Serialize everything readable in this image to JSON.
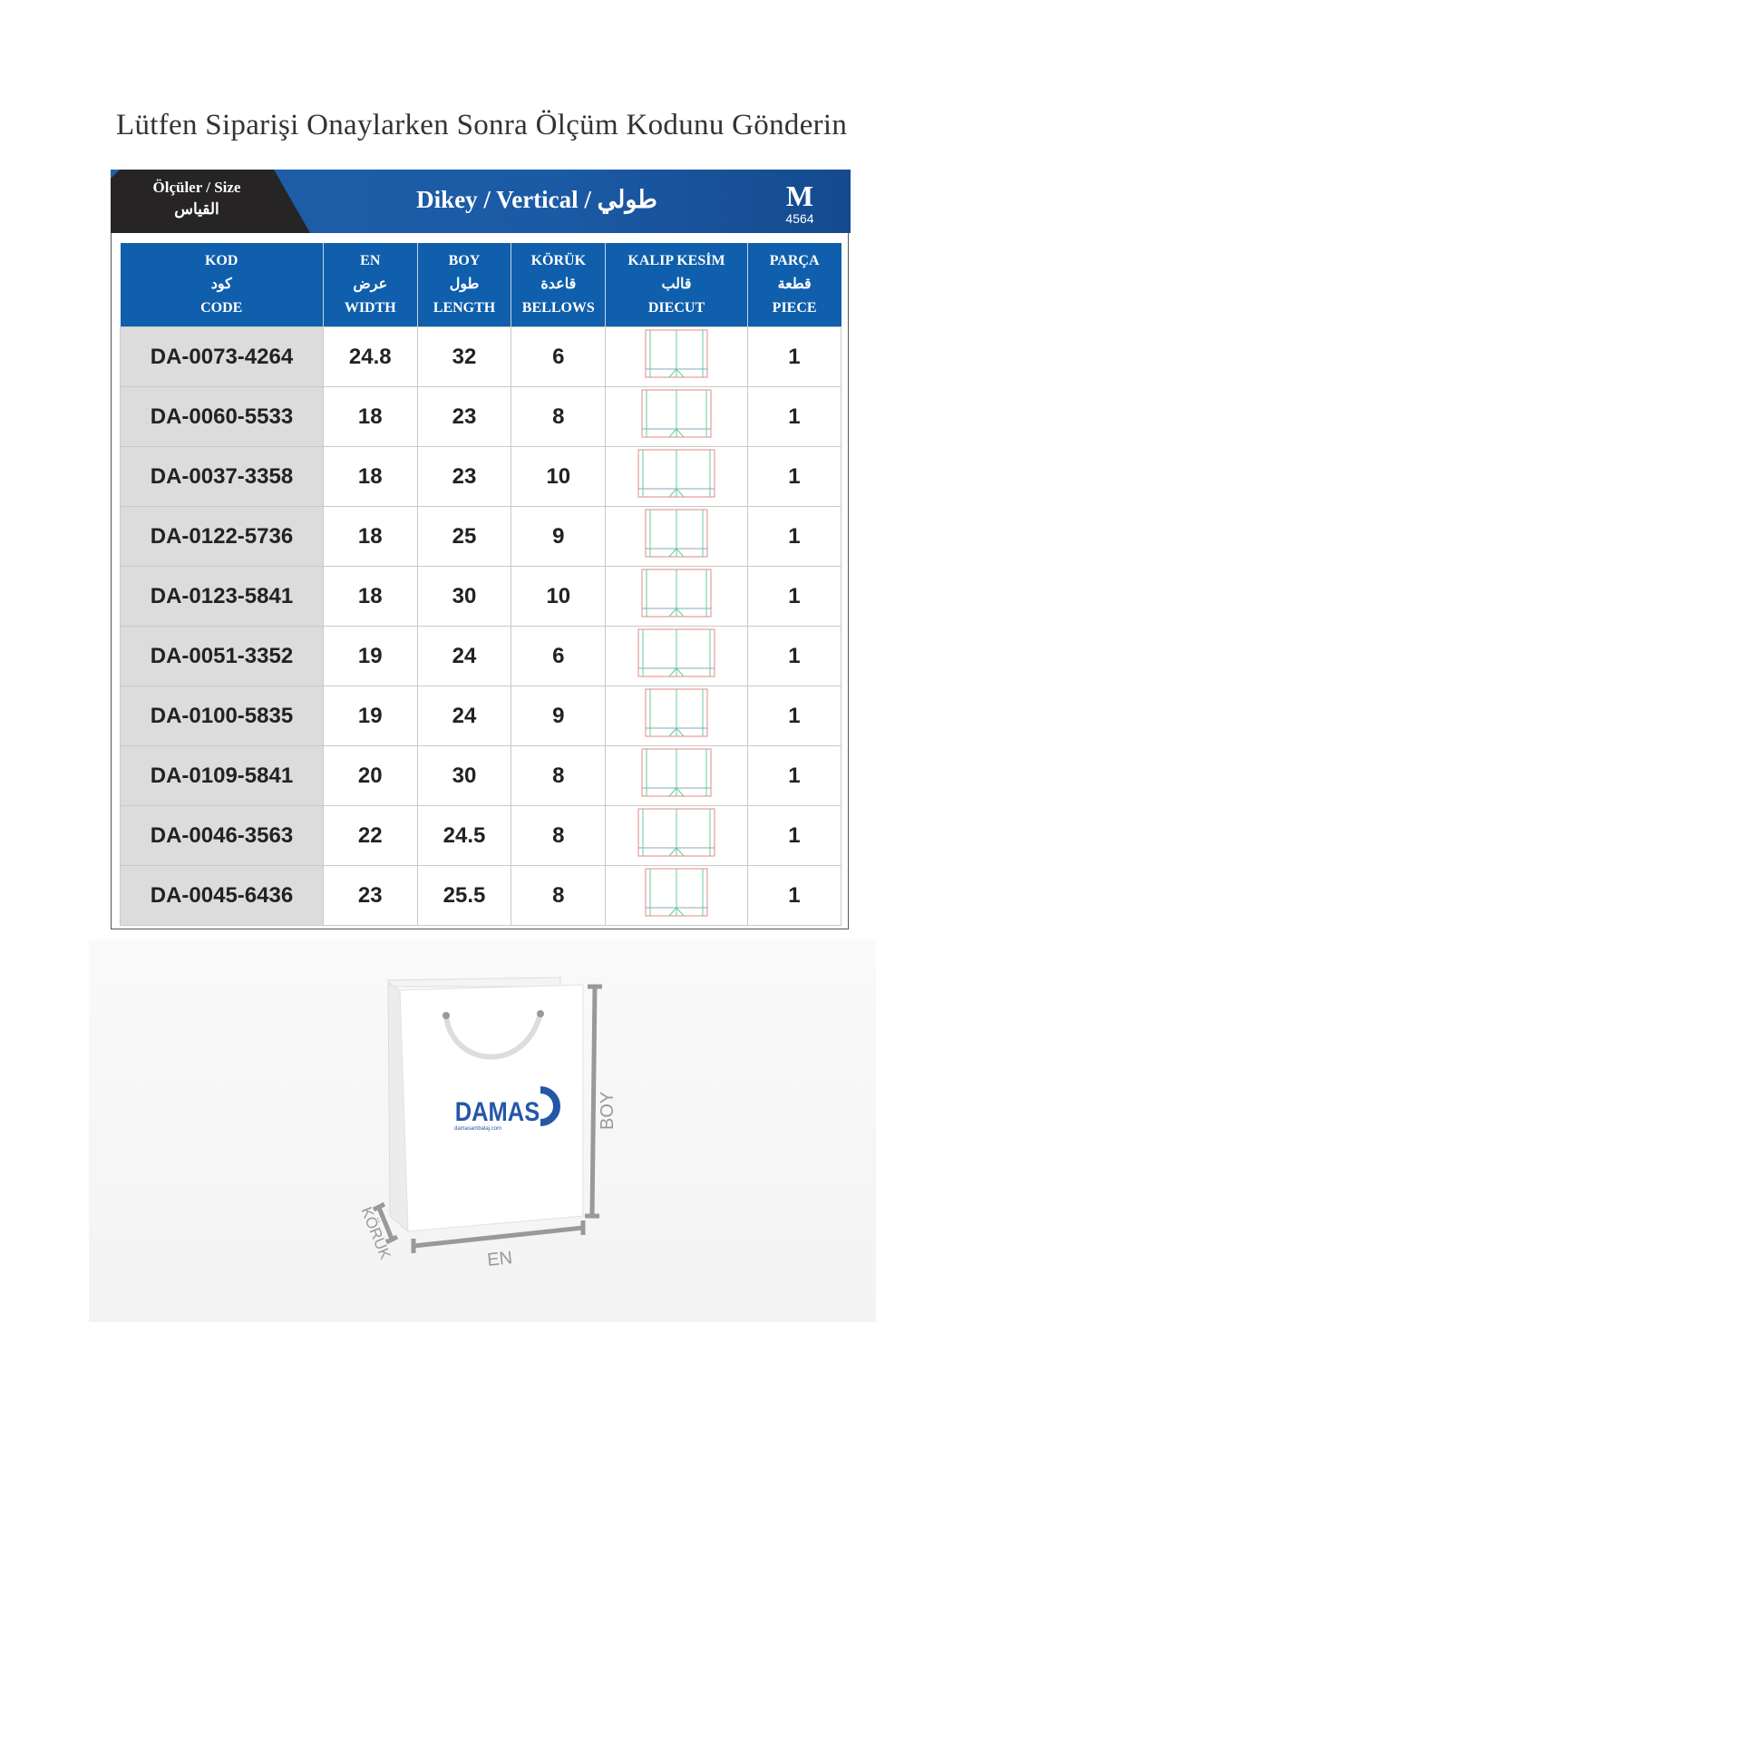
{
  "title": "Lütfen Siparişi Onaylarken Sonra Ölçüm Kodunu Gönderin",
  "header": {
    "size_label": "Ölçüler / Size",
    "size_label_ar": "القياس",
    "orientation": "Dikey / Vertical / طولي",
    "size_code": "M",
    "size_number": "4564",
    "colors": {
      "header_blue": "#1b5aa5",
      "table_header_blue": "#0f5fad",
      "dark": "#262424",
      "code_cell_gray": "#dcdcdc"
    }
  },
  "columns": [
    {
      "tr": "KOD",
      "ar": "كود",
      "en": "CODE"
    },
    {
      "tr": "EN",
      "ar": "عرض",
      "en": "WIDTH"
    },
    {
      "tr": "BOY",
      "ar": "طول",
      "en": "LENGTH"
    },
    {
      "tr": "KÖRÜK",
      "ar": "قاعدة",
      "en": "BELLOWS"
    },
    {
      "tr": "KALIP KESİM",
      "ar": "قالب",
      "en": "DIECUT"
    },
    {
      "tr": "PARÇA",
      "ar": "قطعة",
      "en": "PIECE"
    }
  ],
  "rows": [
    {
      "code": "DA-0073-4264",
      "width": "24.8",
      "length": "32",
      "bellows": "6",
      "piece": "1"
    },
    {
      "code": "DA-0060-5533",
      "width": "18",
      "length": "23",
      "bellows": "8",
      "piece": "1"
    },
    {
      "code": "DA-0037-3358",
      "width": "18",
      "length": "23",
      "bellows": "10",
      "piece": "1"
    },
    {
      "code": "DA-0122-5736",
      "width": "18",
      "length": "25",
      "bellows": "9",
      "piece": "1"
    },
    {
      "code": "DA-0123-5841",
      "width": "18",
      "length": "30",
      "bellows": "10",
      "piece": "1"
    },
    {
      "code": "DA-0051-3352",
      "width": "19",
      "length": "24",
      "bellows": "6",
      "piece": "1"
    },
    {
      "code": "DA-0100-5835",
      "width": "19",
      "length": "24",
      "bellows": "9",
      "piece": "1"
    },
    {
      "code": "DA-0109-5841",
      "width": "20",
      "length": "30",
      "bellows": "8",
      "piece": "1"
    },
    {
      "code": "DA-0046-3563",
      "width": "22",
      "length": "24.5",
      "bellows": "8",
      "piece": "1"
    },
    {
      "code": "DA-0045-6436",
      "width": "23",
      "length": "25.5",
      "bellows": "8",
      "piece": "1"
    }
  ],
  "diagram": {
    "logo_text": "DAMAS",
    "logo_sub": "damasambalaj.com",
    "label_length": "BOY",
    "label_width": "EN",
    "label_bellows": "KÖRÜK"
  }
}
